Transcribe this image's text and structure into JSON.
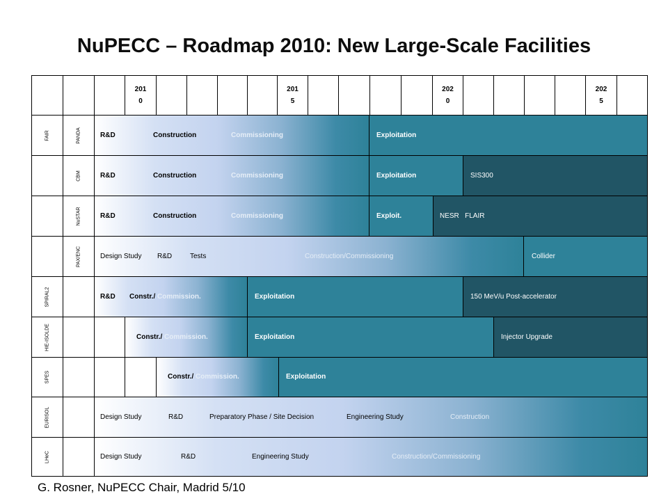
{
  "title": "NuPECC – Roadmap 2010: New Large-Scale Facilities",
  "footer": "G. Rosner, NuPECC Chair, Madrid 5/10",
  "header": {
    "years": [
      "2010",
      "2015",
      "2020",
      "2025"
    ]
  },
  "colors": {
    "teal": "#2e8299",
    "dark_teal": "#215565",
    "gradient_start": "#ffffff",
    "gradient_mid": "#c3d3ef"
  },
  "rows": [
    {
      "facility": "FAIR",
      "experiment": "PANDA",
      "labels": [
        "R&D",
        "Construction",
        "Commissioning",
        "Exploitation"
      ]
    },
    {
      "facility": "",
      "experiment": "CBM",
      "labels": [
        "R&D",
        "Construction",
        "Commissioning",
        "Exploitation",
        "SIS300"
      ]
    },
    {
      "facility": "",
      "experiment": "NuSTAR",
      "labels": [
        "R&D",
        "Construction",
        "Commissioning",
        "Exploit.",
        "NESR   FLAIR"
      ]
    },
    {
      "facility": "",
      "experiment": "PAX/ENC",
      "labels": [
        "Design Study",
        "R&D",
        "Tests",
        "Construction/Commissioning",
        "Collider"
      ]
    },
    {
      "facility": "SPIRAL2",
      "experiment": "",
      "labels": [
        "R&D",
        "Constr./",
        "Commission.",
        "Exploitation",
        "150 MeV/u Post-accelerator"
      ]
    },
    {
      "facility": "HIE-ISOLDE",
      "experiment": "",
      "labels": [
        "Constr./",
        "Commission.",
        "Exploitation",
        "Injector Upgrade"
      ]
    },
    {
      "facility": "SPES",
      "experiment": "",
      "labels": [
        "Constr./",
        "Commission.",
        "Exploitation"
      ]
    },
    {
      "facility": "EURISOL",
      "experiment": "",
      "labels": [
        "Design Study",
        "R&D",
        "Preparatory Phase / Site Decision",
        "Engineering Study",
        "Construction"
      ]
    },
    {
      "facility": "LHeC",
      "experiment": "",
      "labels": [
        "Design Study",
        "R&D",
        "Engineering Study",
        "Construction/Commissioning"
      ]
    }
  ]
}
